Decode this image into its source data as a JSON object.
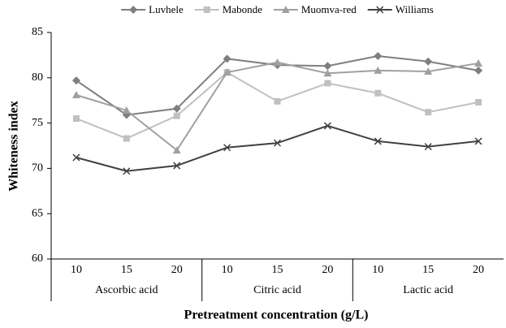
{
  "chart_data": {
    "type": "line",
    "y_label": "Whiteness index",
    "x_label": "Pretreatment concentration (g/L)",
    "categories": [
      "10",
      "15",
      "20",
      "10",
      "15",
      "20",
      "10",
      "15",
      "20"
    ],
    "groups": [
      "Ascorbic acid",
      "Citric acid",
      "Lactic acid"
    ],
    "series": [
      {
        "name": "Luvhele",
        "color": "#7f7f7f",
        "marker": "diamond",
        "values": [
          79.7,
          75.9,
          76.6,
          82.1,
          81.4,
          81.3,
          82.4,
          81.8,
          80.8
        ]
      },
      {
        "name": "Mabonde",
        "color": "#c0c0c0",
        "marker": "square",
        "values": [
          75.5,
          73.3,
          75.8,
          80.6,
          77.4,
          79.4,
          78.3,
          76.2,
          77.3
        ]
      },
      {
        "name": "Muomva-red",
        "color": "#a0a0a0",
        "marker": "triangle",
        "values": [
          78.1,
          76.4,
          72.0,
          80.6,
          81.7,
          80.5,
          80.8,
          80.7,
          81.6
        ]
      },
      {
        "name": "Williams",
        "color": "#404040",
        "marker": "x",
        "values": [
          71.2,
          69.7,
          70.3,
          72.3,
          72.8,
          74.7,
          73.0,
          72.4,
          73.0
        ]
      }
    ],
    "ylim": [
      60,
      85
    ],
    "yticks": [
      60,
      65,
      70,
      75,
      80,
      85
    ],
    "legend": "top",
    "grid": false
  }
}
